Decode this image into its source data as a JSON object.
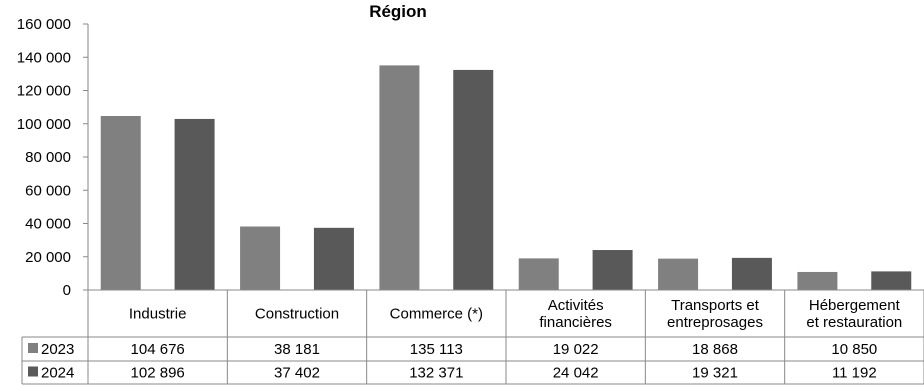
{
  "chart_data": {
    "type": "bar",
    "title": "Région",
    "categories": [
      [
        "Industrie"
      ],
      [
        "Construction"
      ],
      [
        "Commerce (*)"
      ],
      [
        "Activités",
        "financières"
      ],
      [
        "Transports et",
        "entreprosages"
      ],
      [
        "Hébergement",
        "et restauration"
      ]
    ],
    "series": [
      {
        "name": "2023",
        "color": "#808080",
        "values": [
          104676,
          38181,
          135113,
          19022,
          18868,
          10850
        ],
        "labels": [
          "104 676",
          "38 181",
          "135 113",
          "19 022",
          "18 868",
          "10 850"
        ]
      },
      {
        "name": "2024",
        "color": "#595959",
        "values": [
          102896,
          37402,
          132371,
          24042,
          19321,
          11192
        ],
        "labels": [
          "102 896",
          "37 402",
          "132 371",
          "24 042",
          "19 321",
          "11 192"
        ]
      }
    ],
    "ylim": [
      0,
      160000
    ],
    "yticks": [
      {
        "value": 0,
        "label": "0"
      },
      {
        "value": 20000,
        "label": "20 000"
      },
      {
        "value": 40000,
        "label": "40 000"
      },
      {
        "value": 60000,
        "label": "60 000"
      },
      {
        "value": 80000,
        "label": "80 000"
      },
      {
        "value": 100000,
        "label": "100 000"
      },
      {
        "value": 120000,
        "label": "120 000"
      },
      {
        "value": 140000,
        "label": "140 000"
      },
      {
        "value": 160000,
        "label": "160 000"
      }
    ],
    "grid": false,
    "legend": "data-table"
  }
}
